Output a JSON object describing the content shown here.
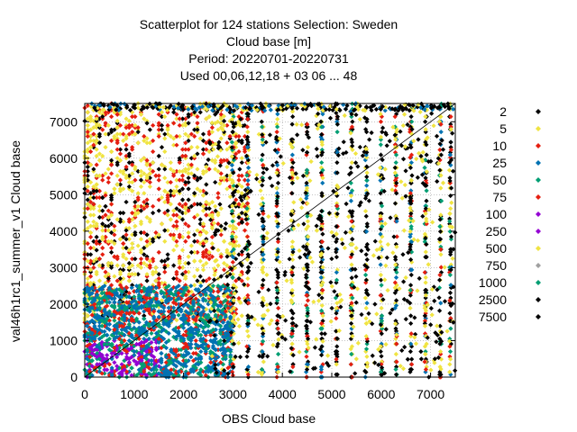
{
  "chart_data": {
    "type": "scatter",
    "title_lines": [
      "Scatterplot for  124 stations Selection: Sweden",
      "Cloud base [m]",
      "Period: 20220701-20220731",
      "Used  00,06,12,18  + 03 06 ... 48"
    ],
    "xlabel": "OBS Cloud base",
    "ylabel": "val46h1rc1_summer_v1 Cloud base",
    "xlim": [
      0,
      7500
    ],
    "ylim": [
      0,
      7500
    ],
    "xticks": [
      0,
      1000,
      2000,
      3000,
      4000,
      5000,
      6000,
      7000
    ],
    "yticks": [
      0,
      1000,
      2000,
      3000,
      4000,
      5000,
      6000,
      7000
    ],
    "grid": true,
    "diagonal_line": true,
    "legend_position": "right",
    "series": [
      {
        "name": "2",
        "color": "#000000"
      },
      {
        "name": "5",
        "color": "#f0e442"
      },
      {
        "name": "10",
        "color": "#e51e10"
      },
      {
        "name": "25",
        "color": "#0072b2"
      },
      {
        "name": "50",
        "color": "#009e73"
      },
      {
        "name": "75",
        "color": "#e51e10"
      },
      {
        "name": "100",
        "color": "#9400d3"
      },
      {
        "name": "250",
        "color": "#9400d3"
      },
      {
        "name": "500",
        "color": "#f0e442"
      },
      {
        "name": "750",
        "color": "#a0a0a0"
      },
      {
        "name": "1000",
        "color": "#009e73"
      },
      {
        "name": "2500",
        "color": "#000000"
      },
      {
        "name": "7500",
        "color": "#000000"
      }
    ]
  }
}
